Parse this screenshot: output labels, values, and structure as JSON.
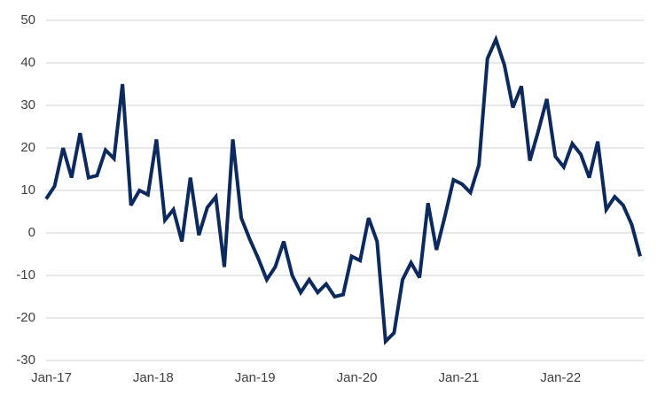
{
  "chart_data": {
    "type": "line",
    "categories": [
      "Jan-17",
      null,
      null,
      null,
      null,
      null,
      null,
      null,
      null,
      null,
      null,
      null,
      "Jan-18",
      null,
      null,
      null,
      null,
      null,
      null,
      null,
      null,
      null,
      null,
      null,
      "Jan-19",
      null,
      null,
      null,
      null,
      null,
      null,
      null,
      null,
      null,
      null,
      null,
      "Jan-20",
      null,
      null,
      null,
      null,
      null,
      null,
      null,
      null,
      null,
      null,
      null,
      "Jan-21",
      null,
      null,
      null,
      null,
      null,
      null,
      null,
      null,
      null,
      null,
      null,
      "Jan-22",
      null,
      null,
      null,
      null,
      null,
      null,
      null,
      null,
      null,
      null
    ],
    "values": [
      8,
      11,
      20,
      13,
      23.5,
      13,
      13.5,
      19.5,
      17.5,
      35,
      6.5,
      10,
      9,
      22,
      3,
      5.5,
      -2,
      13,
      -0.5,
      6,
      8.5,
      -8,
      22,
      3.5,
      -1.5,
      -6,
      -11,
      -8,
      -2,
      -10,
      -14,
      -11,
      -14,
      -12,
      -15,
      -14.5,
      -5.5,
      -6.5,
      3.5,
      -2,
      -25.5,
      -23.5,
      -11,
      -7,
      -10.5,
      7,
      -4,
      4,
      12.5,
      11.5,
      9.5,
      16,
      41,
      45.5,
      39.5,
      29.5,
      34.5,
      17,
      24,
      31.5,
      18,
      15.5,
      21,
      18.5,
      13,
      21.5,
      5.5,
      8.5,
      6.5,
      2,
      -5.5
    ],
    "color": "#0c2a5e",
    "ylim": [
      -30,
      50
    ],
    "yticks": [
      -30,
      -20,
      -10,
      0,
      10,
      20,
      30,
      40,
      50
    ],
    "grid": true
  }
}
